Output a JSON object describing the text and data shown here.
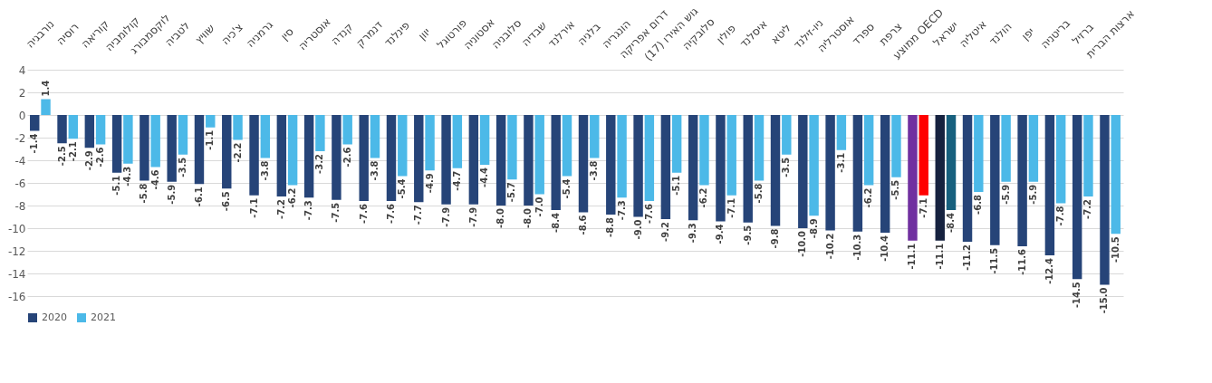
{
  "chart_data": {
    "type": "bar",
    "categories": [
      "נורבגיה",
      "רוסיה",
      "קוריאה",
      "קולומביה",
      "לוקסמבורג",
      "לטביה",
      "שוויץ",
      "צ'כיה",
      "גרמניה",
      "סין",
      "אוסטריה",
      "קנדה",
      "דנמרק",
      "פינלנד",
      "יוון",
      "פורטוגל",
      "אסטוניה",
      "סלובניה",
      "שבדיה",
      "אירלנד",
      "בלגיה",
      "הונגריה",
      "דרום אפריקה",
      "גוש האירו (17)",
      "סלובקיה",
      "פולין",
      "איסלנד",
      "ליטא",
      "ניו-זילנד",
      "אוסטרליה",
      "ספרד",
      "צרפת",
      "ממוצע OECD",
      "ישראל",
      "איטליה",
      "הולנד",
      "יפן",
      "בריטניה",
      "ברזיל",
      "ארצות הברית"
    ],
    "series": [
      {
        "name": "2020",
        "color": "#264478",
        "colors": [
          "#264478",
          "#264478",
          "#264478",
          "#264478",
          "#264478",
          "#264478",
          "#264478",
          "#264478",
          "#264478",
          "#264478",
          "#264478",
          "#264478",
          "#264478",
          "#264478",
          "#264478",
          "#264478",
          "#264478",
          "#264478",
          "#264478",
          "#264478",
          "#264478",
          "#264478",
          "#264478",
          "#264478",
          "#264478",
          "#264478",
          "#264478",
          "#264478",
          "#264478",
          "#264478",
          "#264478",
          "#264478",
          "#7030a0",
          "#16223f",
          "#264478",
          "#264478",
          "#264478",
          "#264478",
          "#264478",
          "#264478"
        ],
        "values": [
          -1.4,
          -2.5,
          -2.9,
          -5.1,
          -5.8,
          -5.9,
          -6.1,
          -6.5,
          -7.1,
          -7.2,
          -7.3,
          -7.5,
          -7.6,
          -7.6,
          -7.7,
          -7.9,
          -7.9,
          -8.0,
          -8.0,
          -8.4,
          -8.6,
          -8.8,
          -9.0,
          -9.2,
          -9.3,
          -9.4,
          -9.5,
          -9.8,
          -10.0,
          -10.2,
          -10.3,
          -10.4,
          -11.1,
          -11.1,
          -11.2,
          -11.5,
          -11.6,
          -12.4,
          -14.5,
          -15.0
        ],
        "value_labels": [
          "-1.4",
          "-2.5",
          "-2.9",
          "-5.1",
          "-5.8",
          "-5.9",
          "-6.1",
          "-6.5",
          "-7.1",
          "-7.2",
          "-7.3",
          "-7.5",
          "-7.6",
          "-7.6",
          "-7.7",
          "-7.9",
          "-7.9",
          "-8.0",
          "-8.0",
          "-8.4",
          "-8.6",
          "-8.8",
          "-9.0",
          "-9.2",
          "-9.3",
          "-9.4",
          "-9.5",
          "-9.8",
          "-10.0",
          "-10.2",
          "-10.3",
          "-10.4",
          "-11.1",
          "-11.1",
          "-11.2",
          "-11.5",
          "-11.6",
          "-12.4",
          "-14.5",
          "-15.0"
        ]
      },
      {
        "name": "2021",
        "color": "#4cb9e8",
        "colors": [
          "#4cb9e8",
          "#4cb9e8",
          "#4cb9e8",
          "#4cb9e8",
          "#4cb9e8",
          "#4cb9e8",
          "#4cb9e8",
          "#4cb9e8",
          "#4cb9e8",
          "#4cb9e8",
          "#4cb9e8",
          "#4cb9e8",
          "#4cb9e8",
          "#4cb9e8",
          "#4cb9e8",
          "#4cb9e8",
          "#4cb9e8",
          "#4cb9e8",
          "#4cb9e8",
          "#4cb9e8",
          "#4cb9e8",
          "#4cb9e8",
          "#4cb9e8",
          "#4cb9e8",
          "#4cb9e8",
          "#4cb9e8",
          "#4cb9e8",
          "#4cb9e8",
          "#4cb9e8",
          "#4cb9e8",
          "#4cb9e8",
          "#4cb9e8",
          "#ff0000",
          "#17607e",
          "#4cb9e8",
          "#4cb9e8",
          "#4cb9e8",
          "#4cb9e8",
          "#4cb9e8",
          "#4cb9e8"
        ],
        "values": [
          1.4,
          -2.1,
          -2.6,
          -4.3,
          -4.6,
          -3.5,
          -1.1,
          -2.2,
          -3.8,
          -6.2,
          -3.2,
          -2.6,
          -3.8,
          -5.4,
          -4.9,
          -4.7,
          -4.4,
          -5.7,
          -7.0,
          -5.4,
          -3.8,
          -7.3,
          -7.6,
          -5.1,
          -6.2,
          -7.1,
          -5.8,
          -3.5,
          -8.9,
          -3.1,
          -6.2,
          -5.5,
          -7.1,
          -8.4,
          -6.8,
          -5.9,
          -5.9,
          -7.8,
          -7.2,
          -10.5
        ],
        "value_labels": [
          "1.4",
          "-2.1",
          "-2.6",
          "-4.3",
          "-4.6",
          "-3.5",
          "-1.1",
          "-2.2",
          "-3.8",
          "-6.2",
          "-3.2",
          "-2.6",
          "-3.8",
          "-5.4",
          "-4.9",
          "-4.7",
          "-4.4",
          "-5.7",
          "-7.0",
          "-5.4",
          "-3.8",
          "-7.3",
          "-7.6",
          "-5.1",
          "-6.2",
          "-7.1",
          "-5.8",
          "-3.5",
          "-8.9",
          "-3.1",
          "-6.2",
          "-5.5",
          "-7.1",
          "-8.4",
          "-6.8",
          "-5.9",
          "-5.9",
          "-7.8",
          "-7.2",
          "-10.5"
        ]
      }
    ],
    "ylim": [
      -16,
      4
    ],
    "yticks": [
      -16,
      -14,
      -12,
      -10,
      -8,
      -6,
      -4,
      -2,
      0,
      2,
      4
    ],
    "grid": "y",
    "legend": "bottom"
  }
}
